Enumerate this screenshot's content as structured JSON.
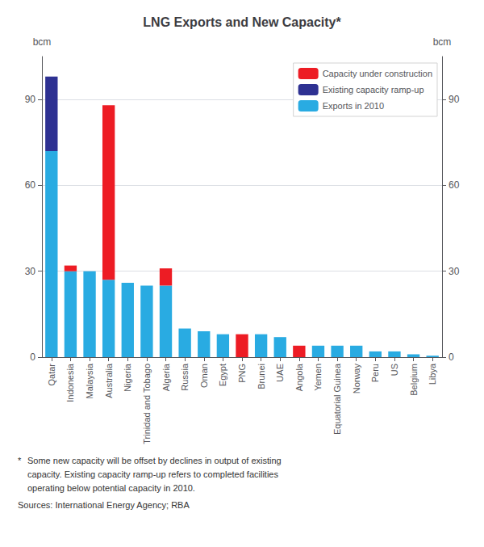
{
  "chart_data": {
    "type": "bar",
    "title": "LNG Exports and New Capacity*",
    "categories": [
      "Qatar",
      "Indonesia",
      "Malaysia",
      "Australia",
      "Nigeria",
      "Trinidad and Tobago",
      "Algeria",
      "Russia",
      "Oman",
      "Egypt",
      "PNG",
      "Brunei",
      "UAE",
      "Angola",
      "Yemen",
      "Equatorial Guinea",
      "Norway",
      "Peru",
      "US",
      "Belgium",
      "Libya"
    ],
    "series": [
      {
        "name": "Exports in 2010",
        "color": "#29ABE2",
        "values": [
          72,
          30,
          30,
          27,
          26,
          25,
          25,
          10,
          9,
          8,
          0,
          8,
          7,
          0,
          4,
          4,
          4,
          2,
          2,
          1,
          0.5
        ]
      },
      {
        "name": "Existing capacity ramp-up",
        "color": "#2E3192",
        "values": [
          26,
          0,
          0,
          0,
          0,
          0,
          0,
          0,
          0,
          0,
          0,
          0,
          0,
          0,
          0,
          0,
          0,
          0,
          0,
          0,
          0
        ]
      },
      {
        "name": "Capacity under construction",
        "color": "#ED1C24",
        "values": [
          0,
          2,
          0,
          61,
          0,
          0,
          6,
          0,
          0,
          0,
          8,
          0,
          0,
          4,
          0,
          0,
          0,
          0,
          0,
          0,
          0
        ]
      }
    ],
    "stacked": true,
    "ylabel": "bcm",
    "y2label": "bcm",
    "ylim": [
      0,
      105
    ],
    "yticks": [
      0,
      30,
      60,
      90
    ],
    "y2lim": [
      0,
      105
    ],
    "y2ticks": [
      0,
      30,
      60,
      90
    ],
    "grid": true,
    "legend": "upper right",
    "annotations": [
      "*",
      "Some new capacity will be offset by declines in output of existing",
      "capacity. Existing capacity ramp-up refers to completed facilities",
      "operating below potential capacity in 2010.",
      "Sources: International Energy Agency; RBA"
    ]
  }
}
